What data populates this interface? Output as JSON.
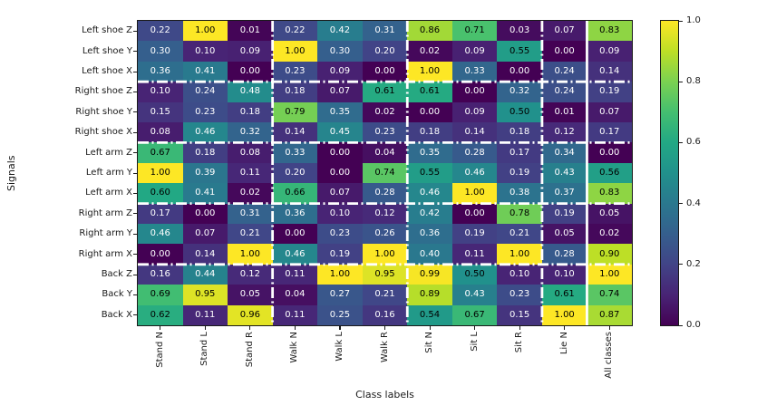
{
  "chart_data": {
    "type": "heatmap",
    "xlabel": "Class labels",
    "ylabel": "Signals",
    "x_tick_labels": [
      "Stand N",
      "Stand L",
      "Stand R",
      "Walk N",
      "Walk L",
      "Walk R",
      "Sit N",
      "Sit L",
      "Sit R",
      "Lie N",
      "All classes"
    ],
    "y_tick_labels": [
      "Left shoe Z",
      "Left shoe Y",
      "Left shoe X",
      "Right shoe Z",
      "Right shoe Y",
      "Right shoe X",
      "Left arm Z",
      "Left arm Y",
      "Left arm X",
      "Right arm Z",
      "Right arm Y",
      "Right arm X",
      "Back Z",
      "Back Y",
      "Back X"
    ],
    "values": [
      [
        0.22,
        1.0,
        0.01,
        0.22,
        0.42,
        0.31,
        0.86,
        0.71,
        0.03,
        0.07,
        0.83
      ],
      [
        0.3,
        0.1,
        0.09,
        1.0,
        0.3,
        0.2,
        0.02,
        0.09,
        0.55,
        0.0,
        0.09
      ],
      [
        0.36,
        0.41,
        0.0,
        0.23,
        0.09,
        0.0,
        1.0,
        0.33,
        0.0,
        0.24,
        0.14
      ],
      [
        0.1,
        0.24,
        0.48,
        0.18,
        0.07,
        0.61,
        0.61,
        0.0,
        0.32,
        0.24,
        0.19
      ],
      [
        0.15,
        0.23,
        0.18,
        0.79,
        0.35,
        0.02,
        0.0,
        0.09,
        0.5,
        0.01,
        0.07
      ],
      [
        0.08,
        0.46,
        0.32,
        0.14,
        0.45,
        0.23,
        0.18,
        0.14,
        0.18,
        0.12,
        0.17
      ],
      [
        0.67,
        0.18,
        0.08,
        0.33,
        0.0,
        0.04,
        0.35,
        0.28,
        0.17,
        0.34,
        0.0
      ],
      [
        1.0,
        0.39,
        0.11,
        0.2,
        0.0,
        0.74,
        0.55,
        0.46,
        0.19,
        0.43,
        0.56
      ],
      [
        0.6,
        0.41,
        0.02,
        0.66,
        0.07,
        0.28,
        0.46,
        1.0,
        0.38,
        0.37,
        0.83
      ],
      [
        0.17,
        0.0,
        0.31,
        0.36,
        0.1,
        0.12,
        0.42,
        0.0,
        0.78,
        0.19,
        0.05
      ],
      [
        0.46,
        0.07,
        0.21,
        0.0,
        0.23,
        0.26,
        0.36,
        0.19,
        0.21,
        0.05,
        0.02
      ],
      [
        0.0,
        0.14,
        1.0,
        0.46,
        0.19,
        1.0,
        0.4,
        0.11,
        1.0,
        0.28,
        0.9
      ],
      [
        0.16,
        0.44,
        0.12,
        0.11,
        1.0,
        0.95,
        0.99,
        0.5,
        0.1,
        0.1,
        1.0
      ],
      [
        0.69,
        0.95,
        0.05,
        0.04,
        0.27,
        0.21,
        0.89,
        0.43,
        0.23,
        0.61,
        0.74
      ],
      [
        0.62,
        0.11,
        0.96,
        0.11,
        0.25,
        0.16,
        0.54,
        0.67,
        0.15,
        1.0,
        0.87
      ]
    ],
    "value_decimals": 2,
    "vmin": 0.0,
    "vmax": 1.0,
    "colormap": "viridis",
    "colormap_stops": [
      "#440154",
      "#482475",
      "#414487",
      "#355f8d",
      "#2a788e",
      "#21918c",
      "#22a884",
      "#44bf70",
      "#7ad151",
      "#bddf26",
      "#fde725"
    ],
    "colorbar": {
      "tick_values": [
        0.0,
        0.2,
        0.4,
        0.6,
        0.8,
        1.0
      ],
      "tick_labels": [
        "0.0",
        "0.2",
        "0.4",
        "0.6",
        "0.8",
        "1.0"
      ]
    },
    "cell_text": {
      "dark_color": "#000000",
      "light_color": "#ffffff",
      "dark_text_min_value": 0.5
    },
    "separators": {
      "color": "#ffffff",
      "dashdot_after_rows": [
        3,
        6,
        9,
        12
      ],
      "dashdot_after_cols": [
        3,
        6,
        9
      ],
      "solid_after_cols": [
        10
      ]
    },
    "grid": false,
    "legend_position": "colorbar-right"
  }
}
